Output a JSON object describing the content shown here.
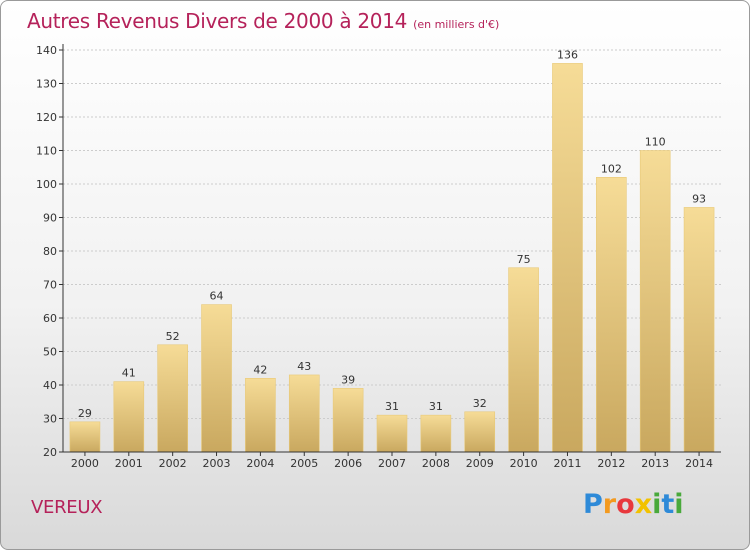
{
  "title": "Autres Revenus Divers de 2000 à 2014",
  "subtitle": "(en milliers d'€)",
  "commune": "VEREUX",
  "logo": {
    "letters": [
      "P",
      "r",
      "o",
      "x",
      "i",
      "t",
      "i"
    ],
    "colors": [
      "#2e8ad8",
      "#f39a1f",
      "#e8383d",
      "#f2c200",
      "#49a93b",
      "#2e8ad8",
      "#49a93b"
    ]
  },
  "colors": {
    "bar_light": "#f6dc97",
    "bar_dark": "#c9a85f",
    "accent": "#b5225a",
    "grid": "#cccccc",
    "axis": "#333333"
  },
  "chart_data": {
    "type": "bar",
    "categories": [
      "2000",
      "2001",
      "2002",
      "2003",
      "2004",
      "2005",
      "2006",
      "2007",
      "2008",
      "2009",
      "2010",
      "2011",
      "2012",
      "2013",
      "2014"
    ],
    "values": [
      29,
      41,
      52,
      64,
      42,
      43,
      39,
      31,
      31,
      32,
      75,
      136,
      102,
      110,
      93
    ],
    "ylim": [
      20,
      140
    ],
    "yticks": [
      20,
      30,
      40,
      50,
      60,
      70,
      80,
      90,
      100,
      110,
      120,
      130,
      140
    ],
    "grid": true,
    "data_labels": true
  }
}
